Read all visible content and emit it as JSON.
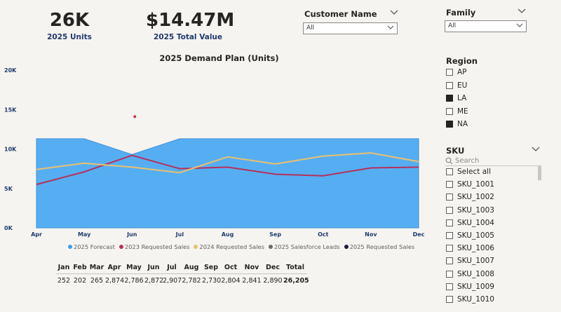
{
  "kpis": {
    "units": {
      "value": "26K",
      "label": "2025 Units"
    },
    "total_value": {
      "value": "$14.47M",
      "label": "2025 Total Value"
    }
  },
  "slicers": {
    "customer": {
      "title": "Customer Name",
      "selected": "All"
    },
    "family": {
      "title": "Family",
      "selected": "All"
    },
    "region": {
      "title": "Region",
      "items": [
        {
          "label": "AP",
          "checked": false
        },
        {
          "label": "EU",
          "checked": false
        },
        {
          "label": "LA",
          "checked": true
        },
        {
          "label": "ME",
          "checked": false
        },
        {
          "label": "NA",
          "checked": true
        }
      ]
    },
    "sku": {
      "title": "SKU",
      "search_placeholder": "Search",
      "items": [
        "Select all",
        "SKU_1001",
        "SKU_1002",
        "SKU_1003",
        "SKU_1004",
        "SKU_1005",
        "SKU_1006",
        "SKU_1007",
        "SKU_1008",
        "SKU_1009",
        "SKU_1010"
      ]
    }
  },
  "chart_data": {
    "type": "area",
    "title": "2025 Demand Plan (Units)",
    "x": [
      "Apr",
      "May",
      "Jun",
      "Jul",
      "Aug",
      "Sep",
      "Oct",
      "Nov",
      "Dec"
    ],
    "ylim": [
      0,
      20000
    ],
    "yticks": [
      0,
      5000,
      10000,
      15000,
      20000
    ],
    "ytick_labels": [
      "0K",
      "5K",
      "10K",
      "15K",
      "20K"
    ],
    "grid": false,
    "legend_position": "bottom",
    "series": [
      {
        "name": "2025 Forecast",
        "type": "area",
        "color": "#56aef2",
        "values": [
          11300,
          11300,
          9300,
          11300,
          11300,
          11300,
          11300,
          11300,
          11300
        ]
      },
      {
        "name": "2023 Requested Sales",
        "type": "line",
        "color": "#b5305d",
        "values": [
          5500,
          7100,
          9200,
          7500,
          7700,
          6800,
          6600,
          7600,
          7700
        ]
      },
      {
        "name": "2024 Requested Sales",
        "type": "line",
        "color": "#e8c170",
        "values": [
          7400,
          8200,
          7700,
          7000,
          9000,
          8100,
          9100,
          9500,
          8400
        ]
      },
      {
        "name": "2025 Salesforce Leads",
        "type": "point",
        "color": "#6b6b6b",
        "values": [
          null,
          null,
          null,
          null,
          null,
          null,
          null,
          null,
          null
        ]
      },
      {
        "name": "2025 Requested Sales",
        "type": "point",
        "color": "#1b1b3a",
        "values": [
          null,
          null,
          null,
          null,
          null,
          null,
          null,
          null,
          null
        ]
      }
    ],
    "outlier": {
      "x": "Jun",
      "y": 14100,
      "color": "#d13438"
    }
  },
  "monthly_table": {
    "headers": [
      "Jan",
      "Feb",
      "Mar",
      "Apr",
      "May",
      "Jun",
      "Jul",
      "Aug",
      "Sep",
      "Oct",
      "Nov",
      "Dec",
      "Total"
    ],
    "values": [
      "252",
      "202",
      "265",
      "2,874",
      "2,786",
      "2,872",
      "2,907",
      "2,782",
      "2,730",
      "2,804",
      "2,841",
      "2,890",
      "26,205"
    ]
  }
}
